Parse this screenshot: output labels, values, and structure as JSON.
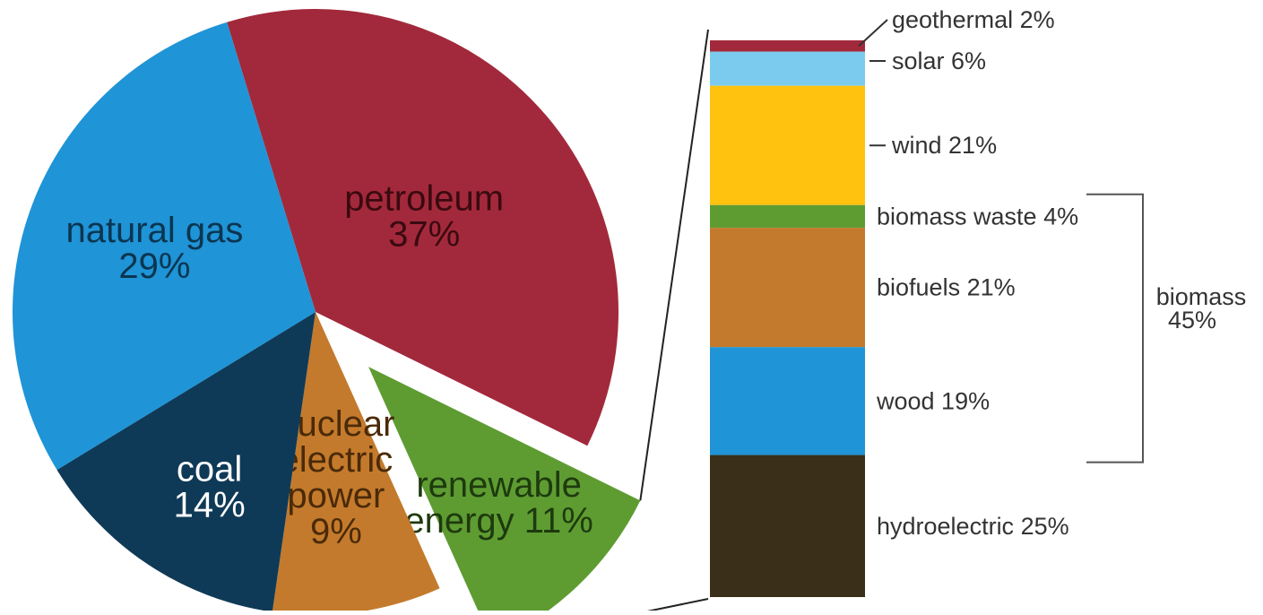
{
  "chart_data": [
    {
      "type": "pie",
      "slices": [
        {
          "name": "petroleum",
          "value": 37,
          "label_lines": [
            "petroleum",
            "37%"
          ],
          "color": "#A2293B",
          "label_color": "#3a0a10"
        },
        {
          "name": "renewable energy",
          "value": 11,
          "label_lines": [
            "renewable",
            "energy 11%"
          ],
          "color": "#5E9C32",
          "label_color": "#1e3a0e",
          "exploded": true
        },
        {
          "name": "nuclear electric power",
          "value": 9,
          "label_lines": [
            "nuclear",
            "electric",
            "power",
            "9%"
          ],
          "color": "#C47A2C",
          "label_color": "#4a2a08"
        },
        {
          "name": "coal",
          "value": 14,
          "label_lines": [
            "coal",
            "14%"
          ],
          "color": "#0F3A57",
          "label_color": "#ffffff"
        },
        {
          "name": "natural gas",
          "value": 29,
          "label_lines": [
            "natural gas",
            "29%"
          ],
          "color": "#1F94D6",
          "label_color": "#0b3550"
        }
      ]
    },
    {
      "type": "bar",
      "stacked": true,
      "segments": [
        {
          "name": "geothermal",
          "value": 2,
          "label": "geothermal 2%",
          "color": "#A2293B"
        },
        {
          "name": "solar",
          "value": 6,
          "label": "solar 6%",
          "color": "#7ACBEE"
        },
        {
          "name": "wind",
          "value": 21,
          "label": "wind 21%",
          "color": "#FFC20E"
        },
        {
          "name": "biomass waste",
          "value": 4,
          "label": "biomass waste 4%",
          "color": "#5E9C32"
        },
        {
          "name": "biofuels",
          "value": 21,
          "label": "biofuels 21%",
          "color": "#C47A2C"
        },
        {
          "name": "wood",
          "value": 19,
          "label": "wood 19%",
          "color": "#1F94D6"
        },
        {
          "name": "hydroelectric",
          "value": 25,
          "label": "hydroelectric 25%",
          "color": "#3A2F18"
        }
      ],
      "group_bracket": {
        "lines": [
          "biomass",
          "45%"
        ],
        "from_segment": "biomass waste",
        "to_segment": "wood"
      }
    }
  ]
}
